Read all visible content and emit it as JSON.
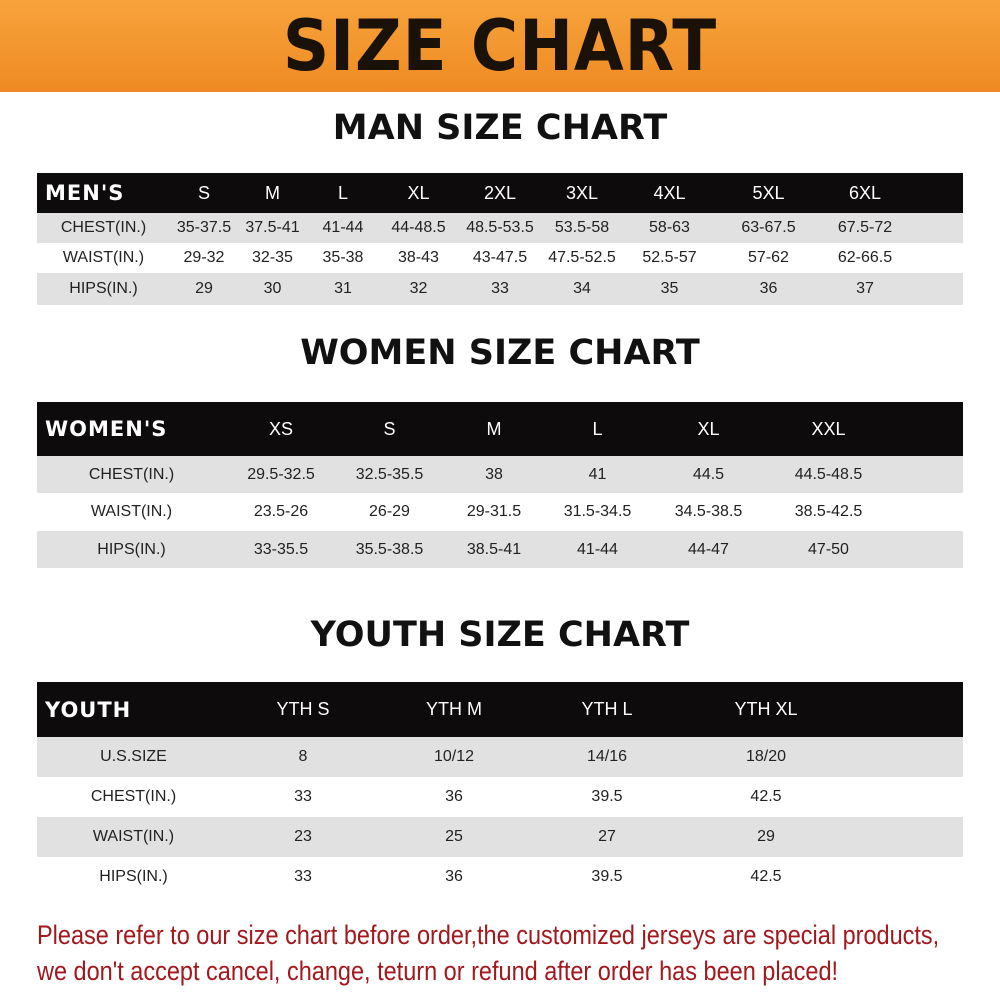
{
  "title": "SIZE CHART",
  "colors": {
    "banner": "#f39a2e",
    "header_row": "#0d0b0b",
    "stripe": "#e1e1e1",
    "note": "#a3181c"
  },
  "men": {
    "title": "MAN SIZE CHART",
    "header": [
      "MEN'S",
      "S",
      "M",
      "L",
      "XL",
      "2XL",
      "3XL",
      "4XL",
      "5XL",
      "6XL"
    ],
    "rows": [
      [
        "CHEST(IN.)",
        "35-37.5",
        "37.5-41",
        "41-44",
        "44-48.5",
        "48.5-53.5",
        "53.5-58",
        "58-63",
        "63-67.5",
        "67.5-72"
      ],
      [
        "WAIST(IN.)",
        "29-32",
        "32-35",
        "35-38",
        "38-43",
        "43-47.5",
        "47.5-52.5",
        "52.5-57",
        "57-62",
        "62-66.5"
      ],
      [
        "HIPS(IN.)",
        "29",
        "30",
        "31",
        "32",
        "33",
        "34",
        "35",
        "36",
        "37"
      ]
    ]
  },
  "women": {
    "title": "WOMEN SIZE CHART",
    "header": [
      "WOMEN'S",
      "XS",
      "S",
      "M",
      "L",
      "XL",
      "XXL"
    ],
    "rows": [
      [
        "CHEST(IN.)",
        "29.5-32.5",
        "32.5-35.5",
        "38",
        "41",
        "44.5",
        "44.5-48.5"
      ],
      [
        "WAIST(IN.)",
        "23.5-26",
        "26-29",
        "29-31.5",
        "31.5-34.5",
        "34.5-38.5",
        "38.5-42.5"
      ],
      [
        "HIPS(IN.)",
        "33-35.5",
        "35.5-38.5",
        "38.5-41",
        "41-44",
        "44-47",
        "47-50"
      ]
    ]
  },
  "youth": {
    "title": "YOUTH SIZE CHART",
    "header": [
      "YOUTH",
      "YTH S",
      "YTH M",
      "YTH L",
      "YTH XL"
    ],
    "rows": [
      [
        "U.S.SIZE",
        "8",
        "10/12",
        "14/16",
        "18/20"
      ],
      [
        "CHEST(IN.)",
        "33",
        "36",
        "39.5",
        "42.5"
      ],
      [
        "WAIST(IN.)",
        "23",
        "25",
        "27",
        "29"
      ],
      [
        "HIPS(IN.)",
        "33",
        "36",
        "39.5",
        "42.5"
      ]
    ]
  },
  "note": {
    "line1": "Please refer to our size chart before order,the customized jerseys are special products,",
    "line2": "we don't accept cancel, change, teturn or refund after order has been placed!"
  }
}
